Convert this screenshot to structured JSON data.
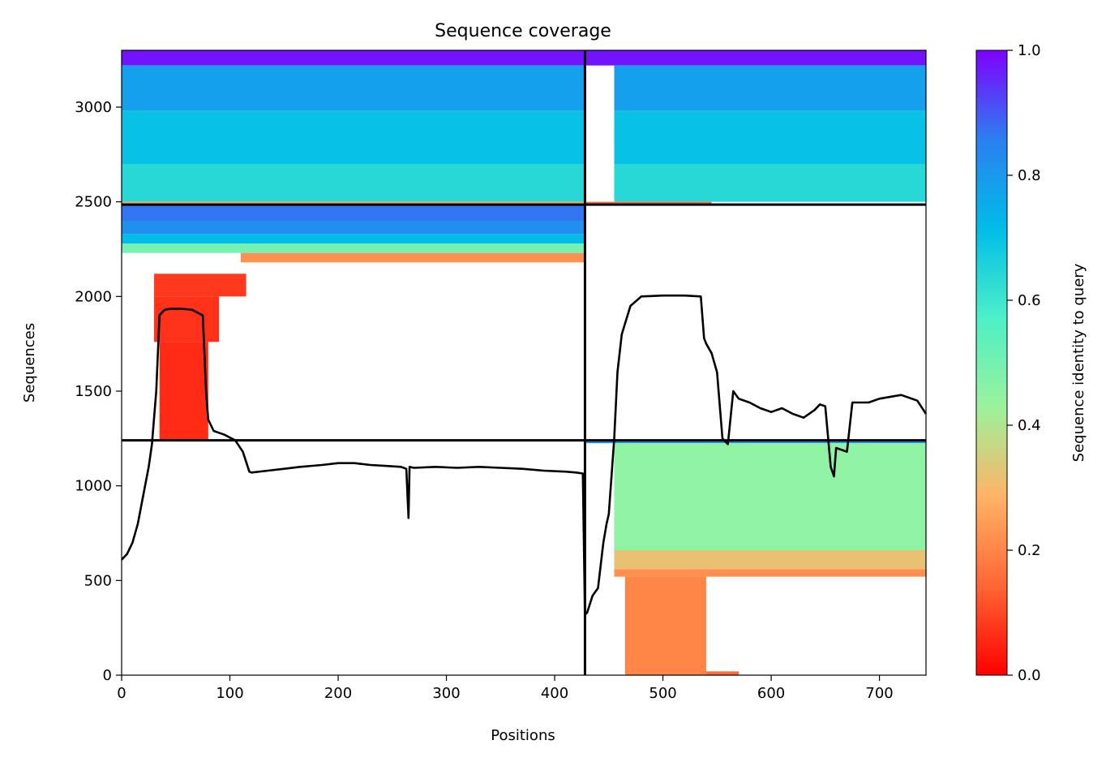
{
  "chart_data": {
    "type": "heatmap",
    "title": "Sequence coverage",
    "xlabel": "Positions",
    "ylabel": "Sequences",
    "xlim": [
      0,
      743
    ],
    "ylim": [
      0,
      3300
    ],
    "x_ticks": [
      0,
      100,
      200,
      300,
      400,
      500,
      600,
      700
    ],
    "y_ticks": [
      0,
      500,
      1000,
      1500,
      2000,
      2500,
      3000
    ],
    "grid": false,
    "colorbar": {
      "label": "Sequence identity to query",
      "colormap": "rainbow_r",
      "range": [
        0,
        1
      ],
      "ticks": [
        "0.0",
        "0.2",
        "0.4",
        "0.6",
        "0.8",
        "1.0"
      ],
      "colors": [
        "#ff0000",
        "#ff6633",
        "#ffb366",
        "#9cf29c",
        "#4df0c8",
        "#00bde8",
        "#2b7ff0",
        "#7f00ff"
      ]
    },
    "domain_boundaries": {
      "x": [
        428
      ],
      "y": [
        1240,
        2485
      ]
    },
    "coverage_blocks": [
      {
        "x0": 0,
        "x1": 428,
        "y0": 3220,
        "y1": 3300,
        "identity": 0.98
      },
      {
        "x0": 0,
        "x1": 428,
        "y0": 2980,
        "y1": 3220,
        "identity": 0.78
      },
      {
        "x0": 0,
        "x1": 428,
        "y0": 2700,
        "y1": 2980,
        "identity": 0.7
      },
      {
        "x0": 0,
        "x1": 428,
        "y0": 2500,
        "y1": 2700,
        "identity": 0.64
      },
      {
        "x0": 0,
        "x1": 428,
        "y0": 2485,
        "y1": 2500,
        "identity": 0.25
      },
      {
        "x0": 0,
        "x1": 428,
        "y0": 2400,
        "y1": 2485,
        "identity": 0.87
      },
      {
        "x0": 0,
        "x1": 428,
        "y0": 2330,
        "y1": 2400,
        "identity": 0.82
      },
      {
        "x0": 0,
        "x1": 428,
        "y0": 2280,
        "y1": 2330,
        "identity": 0.72
      },
      {
        "x0": 0,
        "x1": 428,
        "y0": 2230,
        "y1": 2280,
        "identity": 0.5
      },
      {
        "x0": 110,
        "x1": 428,
        "y0": 2180,
        "y1": 2230,
        "identity": 0.22
      },
      {
        "x0": 30,
        "x1": 115,
        "y0": 2000,
        "y1": 2120,
        "identity": 0.08
      },
      {
        "x0": 30,
        "x1": 90,
        "y0": 1760,
        "y1": 2000,
        "identity": 0.07
      },
      {
        "x0": 35,
        "x1": 80,
        "y0": 1240,
        "y1": 1760,
        "identity": 0.06
      },
      {
        "x0": 428,
        "x1": 743,
        "y0": 3220,
        "y1": 3300,
        "identity": 0.98
      },
      {
        "x0": 455,
        "x1": 743,
        "y0": 2980,
        "y1": 3220,
        "identity": 0.78
      },
      {
        "x0": 455,
        "x1": 743,
        "y0": 2700,
        "y1": 2980,
        "identity": 0.7
      },
      {
        "x0": 455,
        "x1": 743,
        "y0": 2500,
        "y1": 2700,
        "identity": 0.64
      },
      {
        "x0": 428,
        "x1": 545,
        "y0": 2485,
        "y1": 2500,
        "identity": 0.15
      },
      {
        "x0": 428,
        "x1": 743,
        "y0": 1225,
        "y1": 1240,
        "identity": 0.82
      },
      {
        "x0": 455,
        "x1": 743,
        "y0": 660,
        "y1": 1225,
        "identity": 0.45
      },
      {
        "x0": 455,
        "x1": 743,
        "y0": 560,
        "y1": 660,
        "identity": 0.32
      },
      {
        "x0": 455,
        "x1": 743,
        "y0": 520,
        "y1": 560,
        "identity": 0.22
      },
      {
        "x0": 465,
        "x1": 540,
        "y0": 0,
        "y1": 520,
        "identity": 0.2
      },
      {
        "x0": 540,
        "x1": 570,
        "y0": 0,
        "y1": 20,
        "identity": 0.15
      }
    ],
    "series": [
      {
        "x": [
          0,
          5,
          10,
          15,
          20,
          25,
          28,
          32,
          35,
          38,
          40,
          45,
          55,
          65,
          75,
          78,
          80,
          85,
          95,
          105,
          112,
          118,
          120,
          135,
          150,
          165,
          185,
          200,
          215,
          230,
          245,
          258,
          263,
          265,
          266,
          270,
          290,
          310,
          330,
          350,
          370,
          390,
          410,
          420,
          426,
          428,
          430,
          435,
          440,
          445,
          448,
          450,
          455,
          458,
          462,
          470,
          480,
          500,
          520,
          535,
          538,
          540,
          545,
          550,
          555,
          560,
          565,
          570,
          580,
          590,
          600,
          610,
          620,
          630,
          640,
          645,
          650,
          655,
          658,
          660,
          670,
          675,
          680,
          690,
          700,
          720,
          735,
          743
        ],
        "values": [
          610,
          640,
          700,
          800,
          950,
          1100,
          1220,
          1500,
          1900,
          1920,
          1930,
          1935,
          1935,
          1930,
          1900,
          1500,
          1350,
          1290,
          1270,
          1240,
          1180,
          1075,
          1070,
          1080,
          1090,
          1100,
          1110,
          1120,
          1120,
          1110,
          1105,
          1100,
          1090,
          830,
          1100,
          1095,
          1100,
          1095,
          1100,
          1095,
          1090,
          1080,
          1075,
          1070,
          1065,
          320,
          330,
          420,
          460,
          700,
          800,
          850,
          1250,
          1600,
          1800,
          1950,
          2000,
          2005,
          2005,
          2000,
          1780,
          1750,
          1700,
          1600,
          1250,
          1220,
          1500,
          1460,
          1440,
          1410,
          1390,
          1410,
          1380,
          1360,
          1400,
          1430,
          1420,
          1100,
          1050,
          1200,
          1180,
          1440,
          1440,
          1440,
          1460,
          1480,
          1450,
          1380
        ]
      }
    ]
  }
}
